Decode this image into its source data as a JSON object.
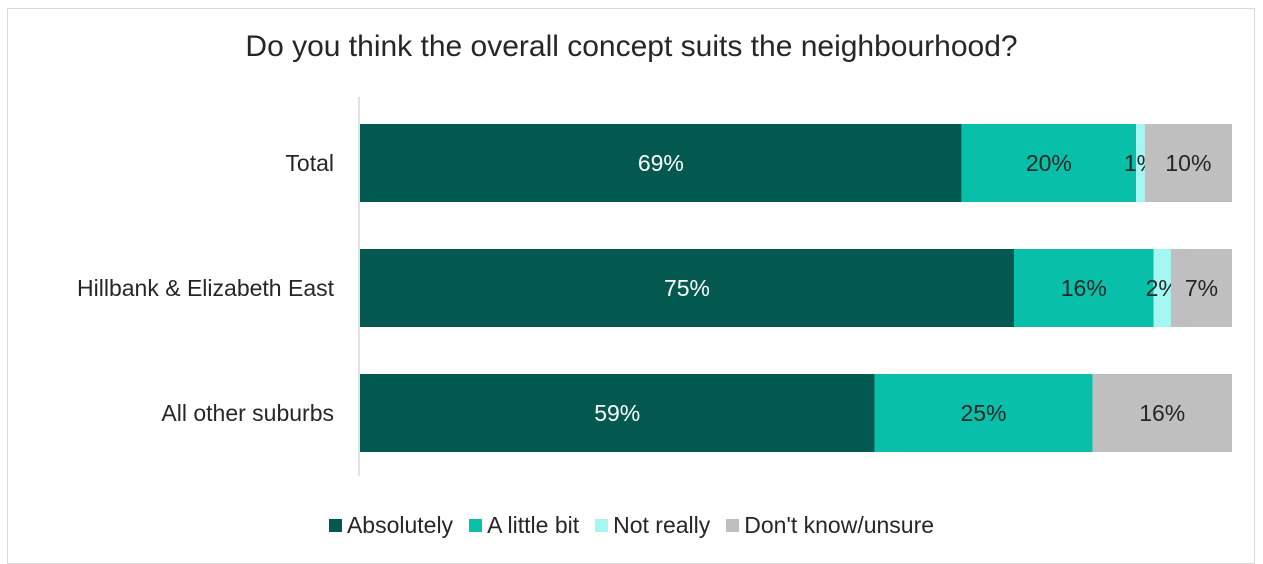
{
  "chart_data": {
    "type": "bar",
    "orientation": "horizontal",
    "stacked": true,
    "title": "Do you think the overall concept suits the neighbourhood?",
    "categories": [
      "Total",
      "Hillbank & Elizabeth East",
      "All other suburbs"
    ],
    "series": [
      {
        "name": "Absolutely",
        "color": "#03594f",
        "values": [
          69,
          75,
          59
        ],
        "labels": [
          "69%",
          "75%",
          "59%"
        ]
      },
      {
        "name": "A little bit",
        "color": "#08bfaa",
        "values": [
          20,
          16,
          25
        ],
        "labels": [
          "20%",
          "16%",
          "25%"
        ]
      },
      {
        "name": "Not really",
        "color": "#a3f7f0",
        "values": [
          1,
          2,
          0
        ],
        "labels": [
          "1%",
          "2%",
          ""
        ]
      },
      {
        "name": "Don't know/unsure",
        "color": "#bfbfbf",
        "values": [
          10,
          7,
          16
        ],
        "labels": [
          "10%",
          "7%",
          "16%"
        ]
      }
    ],
    "xlim": [
      0,
      100
    ],
    "legend_position": "bottom",
    "grid": false
  }
}
